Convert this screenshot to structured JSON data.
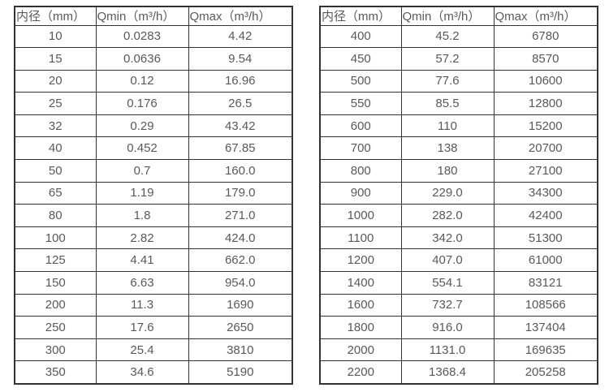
{
  "tables": [
    {
      "name": "flow-range-table-dn10-350",
      "headers": [
        "内径（mm）",
        "Qmin（m³/h）",
        "Qmax（m³/h）"
      ],
      "rows": [
        [
          "10",
          "0.0283",
          "4.42"
        ],
        [
          "15",
          "0.0636",
          "9.54"
        ],
        [
          "20",
          "0.12",
          "16.96"
        ],
        [
          "25",
          "0.176",
          "26.5"
        ],
        [
          "32",
          "0.29",
          "43.42"
        ],
        [
          "40",
          "0.452",
          "67.85"
        ],
        [
          "50",
          "0.7",
          "160.0"
        ],
        [
          "65",
          "1.19",
          "179.0"
        ],
        [
          "80",
          "1.8",
          "271.0"
        ],
        [
          "100",
          "2.82",
          "424.0"
        ],
        [
          "125",
          "4.41",
          "662.0"
        ],
        [
          "150",
          "6.63",
          "954.0"
        ],
        [
          "200",
          "11.3",
          "1690"
        ],
        [
          "250",
          "17.6",
          "2650"
        ],
        [
          "300",
          "25.4",
          "3810"
        ],
        [
          "350",
          "34.6",
          "5190"
        ]
      ]
    },
    {
      "name": "flow-range-table-dn400-2200",
      "headers": [
        "内径（mm）",
        "Qmin（m³/h）",
        "Qmax（m³/h）"
      ],
      "rows": [
        [
          "400",
          "45.2",
          "6780"
        ],
        [
          "450",
          "57.2",
          "8570"
        ],
        [
          "500",
          "77.6",
          "10600"
        ],
        [
          "550",
          "85.5",
          "12800"
        ],
        [
          "600",
          "110",
          "15200"
        ],
        [
          "700",
          "138",
          "20700"
        ],
        [
          "800",
          "180",
          "27100"
        ],
        [
          "900",
          "229.0",
          "34300"
        ],
        [
          "1000",
          "282.0",
          "42400"
        ],
        [
          "1100",
          "342.0",
          "51300"
        ],
        [
          "1200",
          "407.0",
          "61000"
        ],
        [
          "1400",
          "554.1",
          "83121"
        ],
        [
          "1600",
          "732.7",
          "108566"
        ],
        [
          "1800",
          "916.0",
          "137404"
        ],
        [
          "2000",
          "1131.0",
          "169635"
        ],
        [
          "2200",
          "1368.4",
          "205258"
        ]
      ]
    }
  ],
  "colors": {
    "text": "#595959",
    "border": "#333333",
    "background": "#ffffff"
  }
}
